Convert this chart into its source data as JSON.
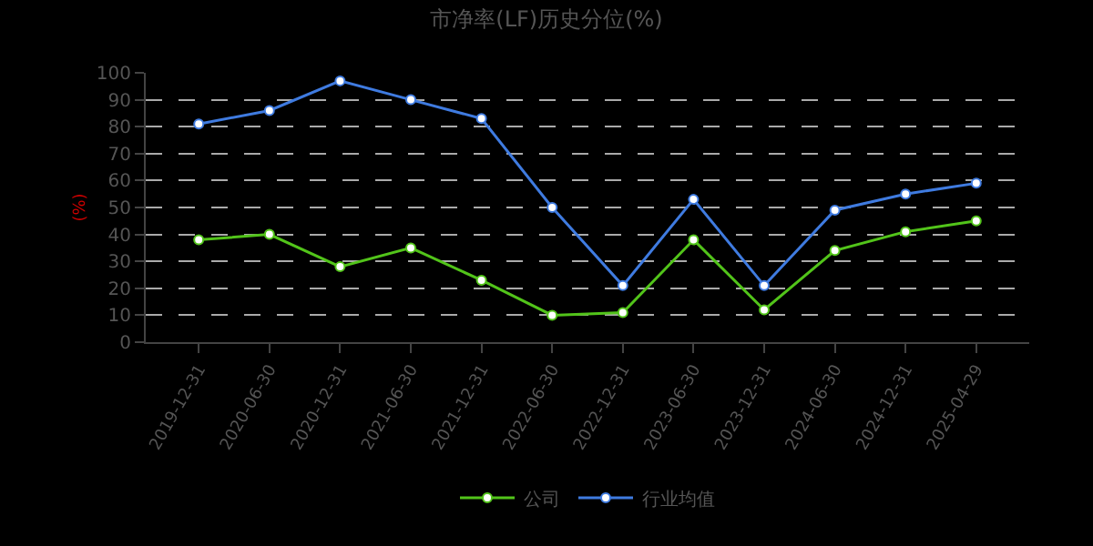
{
  "chart_data": {
    "type": "line",
    "title": "市净率(LF)历史分位(%)",
    "ylabel": "(%)",
    "categories": [
      "2019-12-31",
      "2020-06-30",
      "2020-12-31",
      "2021-06-30",
      "2021-12-31",
      "2022-06-30",
      "2022-12-31",
      "2023-06-30",
      "2023-12-31",
      "2024-06-30",
      "2024-12-31",
      "2025-04-29"
    ],
    "series": [
      {
        "name": "公司",
        "color": "#52c41a",
        "values": [
          38,
          40,
          28,
          35,
          23,
          10,
          11,
          38,
          12,
          34,
          41,
          45
        ]
      },
      {
        "name": "行业均值",
        "color": "#3f7be0",
        "values": [
          81,
          86,
          97,
          90,
          83,
          50,
          21,
          53,
          21,
          49,
          55,
          59
        ]
      }
    ],
    "ylim": [
      0,
      100
    ],
    "yticks": [
      0,
      10,
      20,
      30,
      40,
      50,
      60,
      70,
      80,
      90,
      100
    ],
    "grid": "y",
    "legend": "bottom",
    "marker": "circle",
    "line_style": "solid"
  }
}
